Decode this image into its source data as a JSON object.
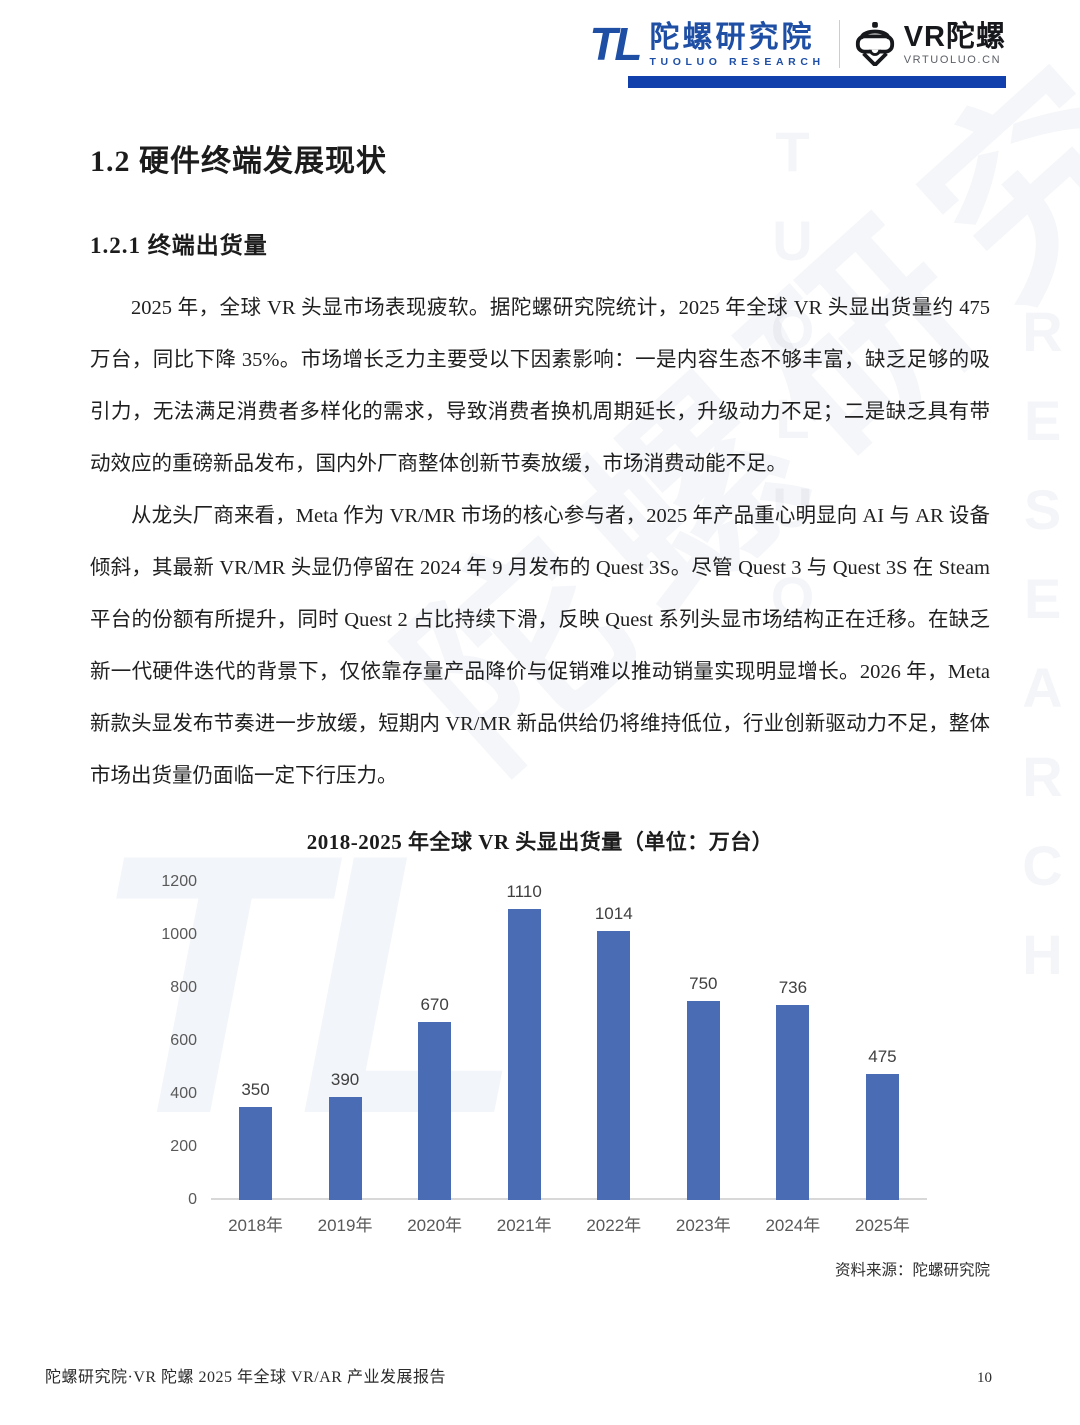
{
  "header": {
    "logo_primary": {
      "glyph": "TL",
      "name": "陀螺研究院",
      "subtitle": "TUOLUO RESEARCH"
    },
    "logo_secondary": {
      "name": "VR陀螺",
      "subtitle": "VRTUOLUO.CN"
    },
    "accent_color": "#1140ad"
  },
  "headings": {
    "h1": "1.2 硬件终端发展现状",
    "h2": "1.2.1 终端出货量"
  },
  "paragraphs": [
    "2025 年，全球 VR 头显市场表现疲软。据陀螺研究院统计，2025 年全球 VR 头显出货量约 475 万台，同比下降 35%。市场增长乏力主要受以下因素影响：一是内容生态不够丰富，缺乏足够的吸引力，无法满足消费者多样化的需求，导致消费者换机周期延长，升级动力不足；二是缺乏具有带动效应的重磅新品发布，国内外厂商整体创新节奏放缓，市场消费动能不足。",
    "从龙头厂商来看，Meta 作为 VR/MR 市场的核心参与者，2025 年产品重心明显向 AI 与 AR 设备倾斜，其最新 VR/MR 头显仍停留在 2024 年 9 月发布的 Quest 3S。尽管 Quest 3 与 Quest 3S 在 Steam 平台的份额有所提升，同时 Quest 2 占比持续下滑，反映 Quest 系列头显市场结构正在迁移。在缺乏新一代硬件迭代的背景下，仅依靠存量产品降价与促销难以推动销量实现明显增长。2026 年，Meta 新款头显发布节奏进一步放缓，短期内 VR/MR 新品供给仍将维持低位，行业创新驱动力不足，整体市场出货量仍面临一定下行压力。"
  ],
  "chart_data": {
    "type": "bar",
    "title": "2018-2025 年全球 VR 头显出货量（单位：万台）",
    "categories": [
      "2018年",
      "2019年",
      "2020年",
      "2021年",
      "2022年",
      "2023年",
      "2024年",
      "2025年"
    ],
    "values": [
      350,
      390,
      670,
      1110,
      1014,
      750,
      736,
      475
    ],
    "ylim": [
      0,
      1200
    ],
    "yticks": [
      0,
      200,
      400,
      600,
      800,
      1000,
      1200
    ],
    "bar_color": "#4a6cb5",
    "grid": false,
    "legend": null,
    "source": "资料来源：陀螺研究院"
  },
  "footer": {
    "left": "陀螺研究院·VR 陀螺 2025 年全球 VR/AR 产业发展报告",
    "page": "10"
  },
  "watermark": {
    "cn": "陀螺研究院",
    "en_col1": "TUOLUO",
    "en_col2": "RESEARCH",
    "tl": "TL"
  }
}
